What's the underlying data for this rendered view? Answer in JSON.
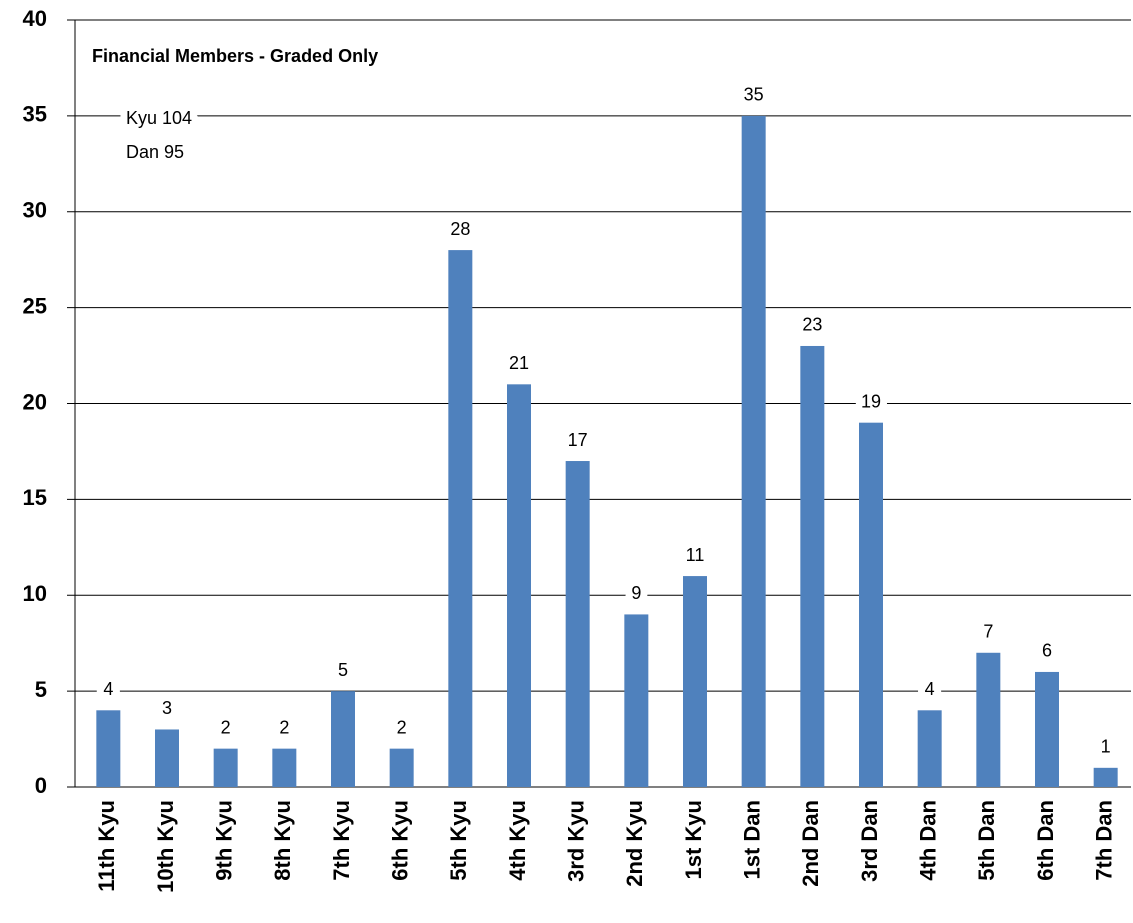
{
  "chart_data": {
    "type": "bar",
    "title": "Financial Members - Graded Only",
    "annotations": [
      "Kyu 104",
      "Dan 95"
    ],
    "categories": [
      "11th Kyu",
      "10th Kyu",
      "9th Kyu",
      "8th Kyu",
      "7th Kyu",
      "6th Kyu",
      "5th Kyu",
      "4th Kyu",
      "3rd Kyu",
      "2nd Kyu",
      "1st Kyu",
      "1st Dan",
      "2nd Dan",
      "3rd Dan",
      "4th Dan",
      "5th Dan",
      "6th Dan",
      "7th Dan"
    ],
    "values": [
      4,
      3,
      2,
      2,
      5,
      2,
      28,
      21,
      17,
      9,
      11,
      35,
      23,
      19,
      4,
      7,
      6,
      1
    ],
    "color": "#4f81bd",
    "ylim": [
      0,
      40
    ],
    "yticks": [
      0,
      5,
      10,
      15,
      20,
      25,
      30,
      35,
      40
    ],
    "grid": true
  }
}
